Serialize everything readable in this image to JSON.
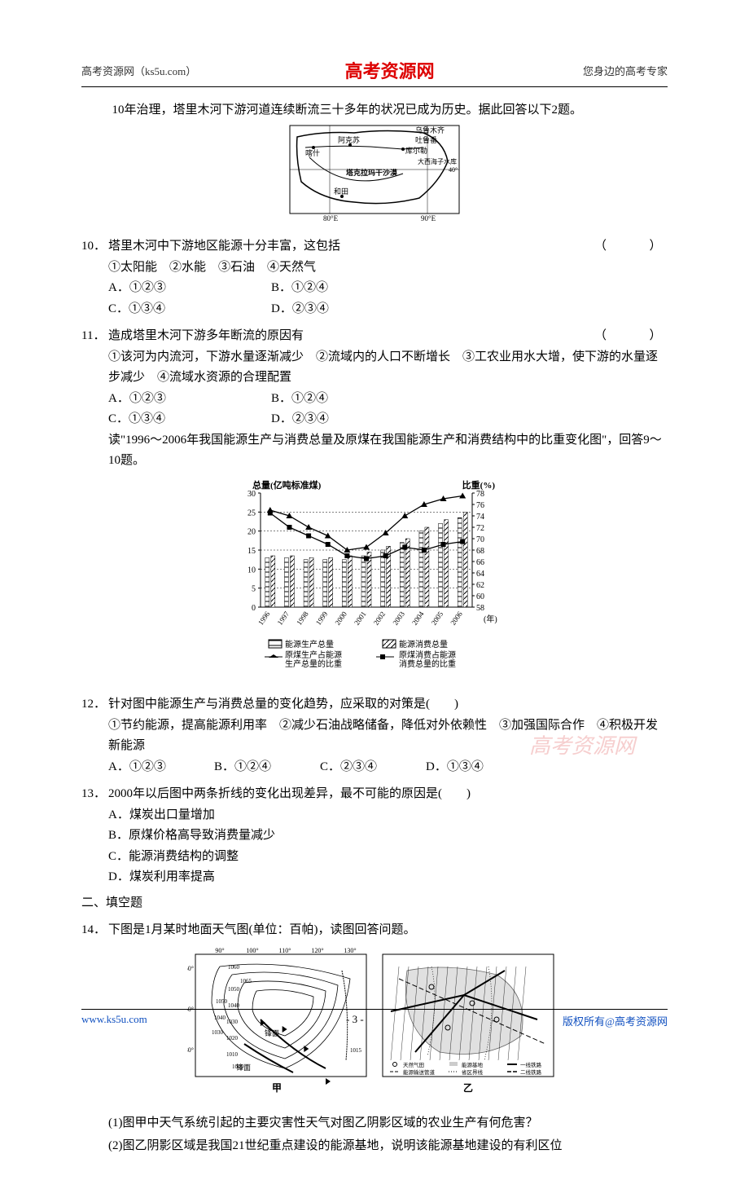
{
  "header": {
    "left": "高考资源网（ks5u.com）",
    "center": "高考资源网",
    "right": "您身边的高考专家"
  },
  "intro": "10年治理，塔里木河下游河道连续断流三十多年的状况已成为历史。据此回答以下2题。",
  "map": {
    "cities": [
      "乌鲁木齐",
      "喀什",
      "阿克苏",
      "吐鲁番",
      "库尔勒",
      "大西海子水库",
      "和田"
    ],
    "desert": "塔克拉玛干沙漠",
    "lat": "40°",
    "lon_left": "80°E",
    "lon_right": "90°E"
  },
  "q10": {
    "num": "10．",
    "stem": "塔里木河中下游地区能源十分丰富，这包括",
    "paren": "（　　）",
    "items": "①太阳能　②水能　③石油　④天然气",
    "A": "A．①②③",
    "B": "B．①②④",
    "C": "C．①③④",
    "D": "D．②③④"
  },
  "q11": {
    "num": "11．",
    "stem": "造成塔里木河下游多年断流的原因有",
    "paren": "（　　）",
    "items": "①该河为内流河，下游水量逐渐减少　②流域内的人口不断增长　③工农业用水大增，使下游的水量逐步减少　④流域水资源的合理配置",
    "A": "A．①②③",
    "B": "B．①②④",
    "C": "C．①③④",
    "D": "D．②③④"
  },
  "chart_intro": "读\"1996～2006年我国能源生产与消费总量及原煤在我国能源生产和消费结构中的比重变化图\"，回答9～10题。",
  "chart": {
    "y_left_label": "总量(亿吨标准煤)",
    "y_right_label": "比重(%)",
    "y_left_ticks": [
      0,
      5,
      10,
      15,
      20,
      25,
      30
    ],
    "y_right_ticks": [
      58,
      60,
      62,
      64,
      66,
      68,
      70,
      72,
      74,
      76,
      78
    ],
    "x_years": [
      "1996",
      "1997",
      "1998",
      "1999",
      "2000",
      "2001",
      "2002",
      "2003",
      "2004",
      "2005",
      "2006"
    ],
    "x_label": "(年)",
    "production_totals": [
      13,
      13,
      12.5,
      12.5,
      12.5,
      13.5,
      15,
      17,
      20,
      22,
      23.5
    ],
    "consumption_totals": [
      13.5,
      13.5,
      13,
      13,
      13.5,
      14.5,
      16,
      18,
      21,
      23,
      25
    ],
    "coal_prod_share": [
      75,
      74,
      72,
      70.5,
      68,
      68.5,
      71,
      74,
      76,
      77,
      77.5
    ],
    "coal_cons_share": [
      74.5,
      72,
      70.5,
      69,
      67,
      66.5,
      67,
      68.5,
      68,
      69,
      69.5
    ],
    "legend": {
      "prod_total": "能源生产总量",
      "cons_total": "能源消费总量",
      "coal_prod": "原煤生产占能源\n生产总量的比重",
      "coal_cons": "原煤消费占能源\n消费总量的比重"
    }
  },
  "q12": {
    "num": "12．",
    "stem": "针对图中能源生产与消费总量的变化趋势，应采取的对策是(　　)",
    "items": "①节约能源，提高能源利用率　②减少石油战略储备，降低对外依赖性　③加强国际合作　④积极开发新能源",
    "A": "A．①②③",
    "B": "B．①②④",
    "C": "C．②③④",
    "D": "D．①③④"
  },
  "q13": {
    "num": "13．",
    "stem": "2000年以后图中两条折线的变化出现差异，最不可能的原因是(　　)",
    "A": "A．煤炭出口量增加",
    "B": "B．原煤价格高导致消费量减少",
    "C": "C．能源消费结构的调整",
    "D": "D．煤炭利用率提高"
  },
  "section2": "二、填空题",
  "q14": {
    "num": "14．",
    "stem": "下图是1月某时地面天气图(单位：百帕)，读图回答问题。",
    "weather": {
      "lons": [
        "90°",
        "100°",
        "110°",
        "120°",
        "130°"
      ],
      "lats": [
        "50°",
        "40°",
        "30°"
      ],
      "isobars": [
        "1060",
        "1065",
        "1050",
        "1040",
        "1030",
        "1050",
        "1040",
        "1030",
        "1020",
        "1010",
        "1000",
        "1015"
      ],
      "front": "锋面",
      "label_left": "甲",
      "label_right": "乙",
      "legend_items": [
        "天然气田",
        "能源基地",
        "一线铁路",
        "能源输送管道",
        "省区界线",
        "二线铁路"
      ]
    },
    "sub1": "(1)图甲中天气系统引起的主要灾害性天气对图乙阴影区域的农业生产有何危害？",
    "sub2": "(2)图乙阴影区域是我国21世纪重点建设的能源基地，说明该能源基地建设的有利区位"
  },
  "watermark": "高考资源网",
  "footer": {
    "left": "www.ks5u.com",
    "center": "- 3 -",
    "right": "版权所有@高考资源网"
  }
}
